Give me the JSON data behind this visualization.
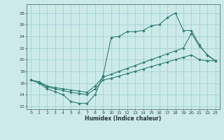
{
  "xlabel": "Humidex (Indice chaleur)",
  "background_color": "#cceae8",
  "grid_color": "#99cccc",
  "line_color": "#2e7d72",
  "xlim": [
    -0.5,
    23.5
  ],
  "ylim": [
    11.5,
    29.5
  ],
  "yticks": [
    12,
    14,
    16,
    18,
    20,
    22,
    24,
    26,
    28
  ],
  "xticks": [
    0,
    1,
    2,
    3,
    4,
    5,
    6,
    7,
    8,
    9,
    10,
    11,
    12,
    13,
    14,
    15,
    16,
    17,
    18,
    19,
    20,
    21,
    22,
    23
  ],
  "line1_x": [
    0,
    1,
    2,
    3,
    4,
    5,
    6,
    7,
    8,
    9,
    10,
    11,
    12,
    13,
    14,
    15,
    16,
    17,
    18,
    19,
    20,
    21,
    22,
    23
  ],
  "line1_y": [
    16.5,
    16.0,
    15.0,
    14.5,
    14.0,
    12.8,
    12.5,
    12.5,
    14.0,
    17.3,
    23.8,
    24.0,
    24.8,
    24.8,
    25.0,
    25.8,
    26.0,
    27.2,
    28.0,
    25.0,
    25.0,
    22.5,
    20.7,
    19.8
  ],
  "line2_x": [
    0,
    1,
    2,
    3,
    4,
    5,
    6,
    7,
    8,
    9,
    10,
    11,
    12,
    13,
    14,
    15,
    16,
    17,
    18,
    19,
    20,
    21,
    22,
    23
  ],
  "line2_y": [
    16.5,
    16.2,
    15.5,
    15.2,
    15.0,
    14.8,
    14.6,
    14.4,
    15.5,
    17.0,
    17.5,
    18.0,
    18.5,
    19.0,
    19.5,
    20.0,
    20.5,
    21.0,
    21.5,
    22.0,
    24.5,
    22.3,
    20.8,
    19.8
  ],
  "line3_x": [
    0,
    1,
    2,
    3,
    4,
    5,
    6,
    7,
    8,
    9,
    10,
    11,
    12,
    13,
    14,
    15,
    16,
    17,
    18,
    19,
    20,
    21,
    22,
    23
  ],
  "line3_y": [
    16.5,
    16.1,
    15.3,
    15.0,
    14.7,
    14.4,
    14.2,
    14.0,
    15.0,
    16.5,
    16.8,
    17.2,
    17.6,
    18.0,
    18.4,
    18.8,
    19.2,
    19.6,
    20.0,
    20.4,
    20.8,
    20.0,
    19.8,
    19.8
  ]
}
